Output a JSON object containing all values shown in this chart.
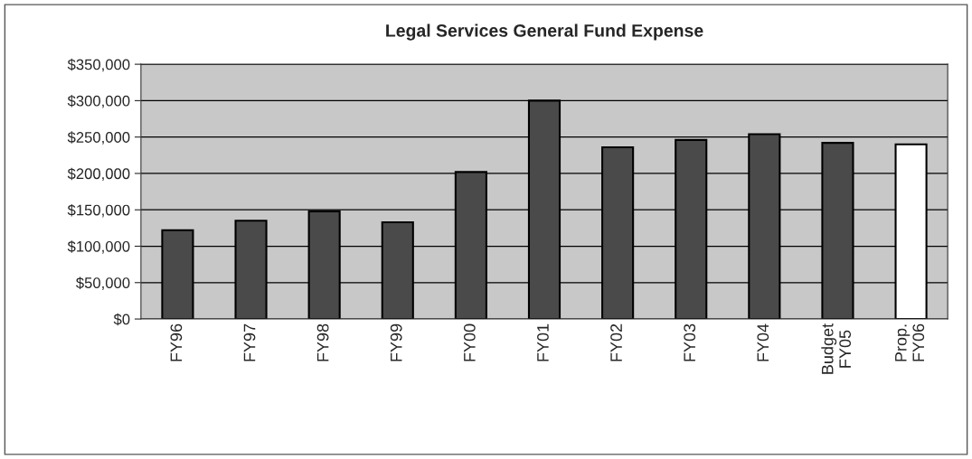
{
  "chart_data": {
    "type": "bar",
    "title": "Legal Services General Fund Expense",
    "categories": [
      "FY96",
      "FY97",
      "FY98",
      "FY99",
      "FY00",
      "FY01",
      "FY02",
      "FY03",
      "FY04",
      "Budget\nFY05",
      "Prop.\nFY06"
    ],
    "values": [
      122000,
      135000,
      148000,
      133000,
      202000,
      300000,
      236000,
      246000,
      254000,
      242000,
      240000
    ],
    "colors": [
      "#4a4a4a",
      "#4a4a4a",
      "#4a4a4a",
      "#4a4a4a",
      "#4a4a4a",
      "#4a4a4a",
      "#4a4a4a",
      "#4a4a4a",
      "#4a4a4a",
      "#4a4a4a",
      "#ffffff"
    ],
    "ylim": [
      0,
      350000
    ],
    "yticks": [
      {
        "value": 0,
        "label": "$0"
      },
      {
        "value": 50000,
        "label": "$50,000"
      },
      {
        "value": 100000,
        "label": "$100,000"
      },
      {
        "value": 150000,
        "label": "$150,000"
      },
      {
        "value": 200000,
        "label": "$200,000"
      },
      {
        "value": 250000,
        "label": "$250,000"
      },
      {
        "value": 300000,
        "label": "$300,000"
      },
      {
        "value": 350000,
        "label": "$350,000"
      }
    ],
    "grid": "y"
  }
}
